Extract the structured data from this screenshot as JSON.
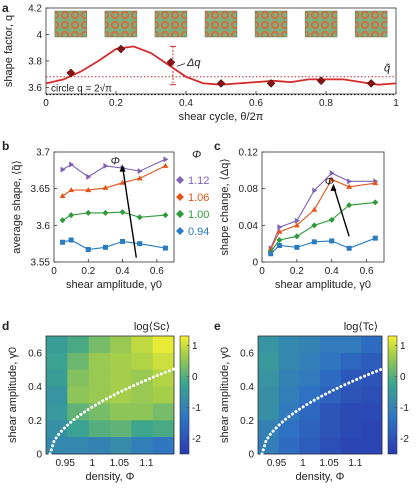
{
  "panels": {
    "a": "a",
    "b": "b",
    "c": "c",
    "d": "d",
    "e": "e"
  },
  "chart_data": [
    {
      "id": "a",
      "type": "line",
      "xlabel": "shear cycle, θ/2π",
      "ylabel": "shape factor, q",
      "xlim": [
        0,
        1
      ],
      "ylim": [
        3.55,
        4.2
      ],
      "xticks": [
        "0",
        "0.2",
        "0.4",
        "0.6",
        "0.8",
        "1"
      ],
      "yticks": [
        "3.6",
        "3.8",
        "4",
        "4.2"
      ],
      "series": [
        {
          "color": "#d42a2a",
          "x": [
            0,
            0.05,
            0.1,
            0.15,
            0.2,
            0.25,
            0.3,
            0.35,
            0.4,
            0.45,
            0.5,
            0.55,
            0.6,
            0.65,
            0.7,
            0.75,
            0.8,
            0.85,
            0.9,
            0.95,
            1.0
          ],
          "values": [
            3.63,
            3.66,
            3.72,
            3.8,
            3.89,
            3.91,
            3.86,
            3.77,
            3.68,
            3.63,
            3.62,
            3.63,
            3.64,
            3.65,
            3.64,
            3.66,
            3.66,
            3.66,
            3.64,
            3.62,
            3.63
          ]
        }
      ],
      "markers": {
        "x": [
          0.071,
          0.214,
          0.357,
          0.5,
          0.643,
          0.786,
          0.929
        ],
        "values": [
          3.71,
          3.89,
          3.79,
          3.63,
          3.63,
          3.65,
          3.63
        ]
      },
      "reference_lines": [
        {
          "label": "circle q = 2√π",
          "value": 3.545,
          "style": "dotted",
          "color": "#000000"
        },
        {
          "value": 3.68,
          "style": "dotted",
          "color": "#d42a2a"
        }
      ],
      "annotations": [
        "Δq",
        "q̃"
      ]
    },
    {
      "id": "b",
      "type": "line",
      "xlabel": "shear amplitude, γ0",
      "ylabel": "average shape, ⟨q̃⟩",
      "xlim": [
        0,
        0.7
      ],
      "ylim": [
        3.55,
        3.7
      ],
      "xticks": [
        "0",
        "0.2",
        "0.4",
        "0.6"
      ],
      "yticks": [
        "3.55",
        "3.6",
        "3.65",
        "3.7"
      ],
      "x": [
        0.05,
        0.1,
        0.2,
        0.3,
        0.4,
        0.5,
        0.65
      ],
      "series": [
        {
          "name": "1.12",
          "color": "#7f63b8",
          "values": [
            3.676,
            3.683,
            3.666,
            3.681,
            3.678,
            3.674,
            3.69
          ]
        },
        {
          "name": "1.06",
          "color": "#e3561a",
          "values": [
            3.64,
            3.648,
            3.648,
            3.651,
            3.658,
            3.664,
            3.681
          ]
        },
        {
          "name": "1.00",
          "color": "#2e9b3b",
          "values": [
            3.607,
            3.614,
            3.617,
            3.617,
            3.618,
            3.611,
            3.614
          ]
        },
        {
          "name": "0.94",
          "color": "#2a7bbf",
          "values": [
            3.577,
            3.58,
            3.567,
            3.57,
            3.578,
            3.575,
            3.569
          ]
        }
      ],
      "legend_title": "Φ",
      "annotation": "Φ"
    },
    {
      "id": "c",
      "type": "line",
      "xlabel": "shear amplitude, γ0",
      "ylabel": "shape change, ⟨Δq⟩",
      "xlim": [
        0,
        0.7
      ],
      "ylim": [
        0,
        0.12
      ],
      "xticks": [
        "0",
        "0.2",
        "0.4",
        "0.6"
      ],
      "yticks": [
        "0",
        "0.04",
        "0.08",
        "0.12"
      ],
      "x": [
        0.05,
        0.1,
        0.2,
        0.3,
        0.4,
        0.5,
        0.65
      ],
      "series": [
        {
          "name": "1.12",
          "color": "#7f63b8",
          "values": [
            0.015,
            0.038,
            0.045,
            0.078,
            0.097,
            0.088,
            0.088
          ]
        },
        {
          "name": "1.06",
          "color": "#e3561a",
          "values": [
            0.014,
            0.033,
            0.04,
            0.057,
            0.09,
            0.082,
            0.086
          ]
        },
        {
          "name": "1.00",
          "color": "#2e9b3b",
          "values": [
            0.011,
            0.024,
            0.028,
            0.04,
            0.046,
            0.062,
            0.065
          ]
        },
        {
          "name": "0.94",
          "color": "#2a7bbf",
          "values": [
            0.009,
            0.018,
            0.016,
            0.022,
            0.023,
            0.015,
            0.026
          ]
        }
      ],
      "annotation": "Φ"
    },
    {
      "id": "d",
      "type": "heatmap",
      "title": "log⟨Sc⟩",
      "xlabel": "density, Φ",
      "ylabel": "shear amplitude, γ0",
      "xticks": [
        "0.95",
        "1",
        "1.05",
        "1.1"
      ],
      "yticks": [
        "0",
        "0.2",
        "0.4",
        "0.6"
      ],
      "colorbar_ticks": [
        "1",
        "0",
        "-1",
        "-2"
      ],
      "colorbar_range": [
        -2.5,
        1.3
      ],
      "rows_top_to_bottom": [
        [
          -0.4,
          -0.1,
          0.3,
          0.6,
          0.9,
          1.2
        ],
        [
          -0.3,
          0.2,
          0.6,
          0.7,
          0.8,
          1.0
        ],
        [
          -0.4,
          0.4,
          0.6,
          0.7,
          0.6,
          0.8
        ],
        [
          -0.6,
          0.5,
          0.6,
          0.7,
          0.6,
          0.7
        ],
        [
          -0.5,
          0.1,
          0.3,
          0.5,
          0.5,
          0.3
        ],
        [
          -0.7,
          -0.3,
          0.0,
          0.1,
          -0.2,
          -0.1
        ],
        [
          -0.9,
          -0.9,
          -1.0,
          -0.8,
          -1.1,
          -1.3
        ]
      ]
    },
    {
      "id": "e",
      "type": "heatmap",
      "title": "log⟨Tc⟩",
      "xlabel": "density, Φ",
      "ylabel": "shear amplitude, γ0",
      "xticks": [
        "0.95",
        "1",
        "1.05",
        "1.1"
      ],
      "yticks": [
        "0",
        "0.2",
        "0.4",
        "0.6"
      ],
      "colorbar_ticks": [
        "1",
        "0",
        "-1",
        "-2"
      ],
      "colorbar_range": [
        -2.5,
        1.3
      ],
      "rows_top_to_bottom": [
        [
          -0.6,
          -0.9,
          -1.0,
          -1.2,
          -1.2,
          -1.5
        ],
        [
          -0.5,
          -0.9,
          -1.1,
          -1.3,
          -1.6,
          -1.8
        ],
        [
          -0.6,
          -1.0,
          -1.2,
          -1.5,
          -1.9,
          -2.0
        ],
        [
          -0.7,
          -1.1,
          -1.4,
          -1.7,
          -2.0,
          -2.1
        ],
        [
          -0.7,
          -1.2,
          -1.6,
          -2.0,
          -2.2,
          -2.2
        ],
        [
          -1.0,
          -1.4,
          -1.7,
          -2.0,
          -2.2,
          -2.3
        ],
        [
          -1.1,
          -1.5,
          -1.8,
          -2.1,
          -2.3,
          -2.3
        ]
      ]
    }
  ]
}
